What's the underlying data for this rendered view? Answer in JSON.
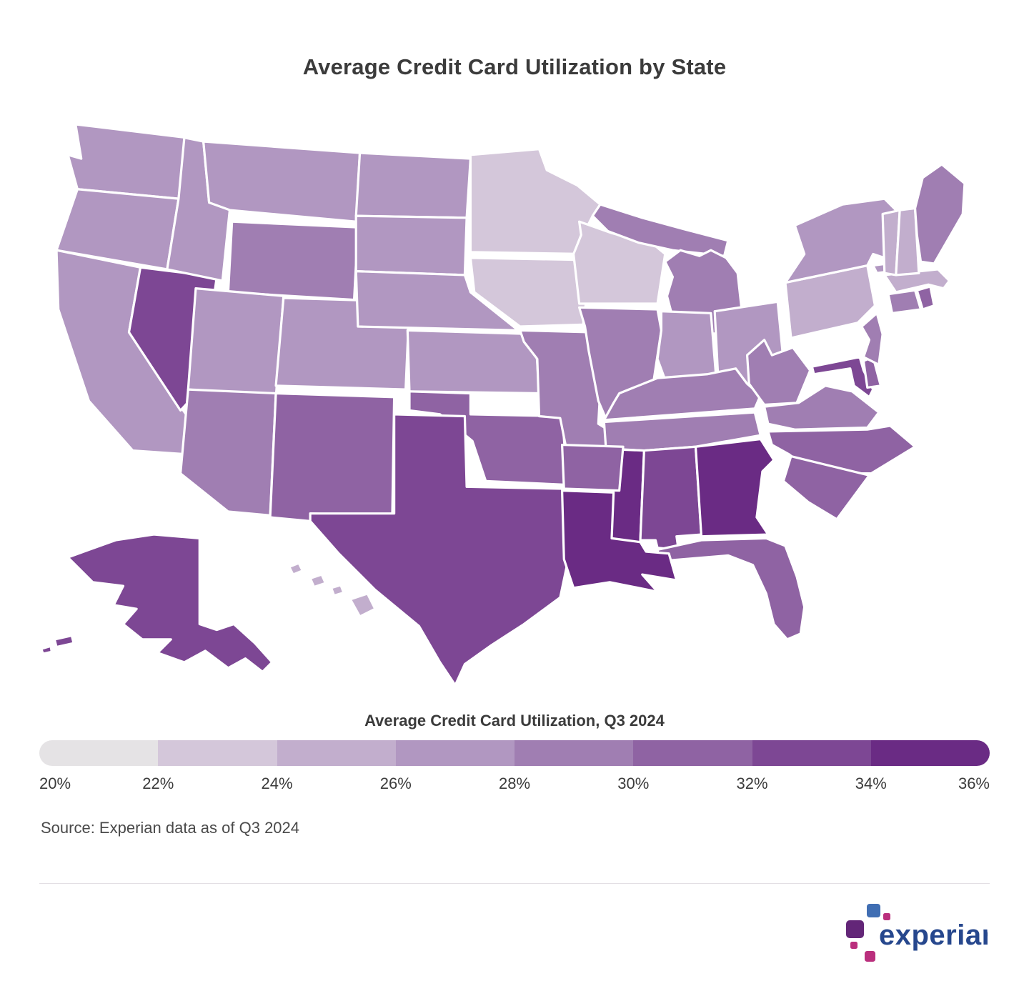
{
  "page": {
    "title": "Average Credit Card Utilization by State",
    "source_note": "Source: Experian data as of Q3 2024",
    "background_color": "#ffffff"
  },
  "brand": {
    "name": "experian",
    "trademark": "™",
    "wordmark_color": "#26478d",
    "square_colors": {
      "blue": "#406eb3",
      "purple": "#632678",
      "magenta": "#ba2f7d"
    }
  },
  "chart_data": {
    "type": "choropleth_map",
    "title": "Average Credit Card Utilization by State",
    "unit": "%",
    "region": "United States",
    "legend": {
      "title": "Average Credit Card Utilization, Q3 2024",
      "min": 20,
      "max": 36,
      "bucket_size": 2,
      "tick_labels": [
        "20%",
        "22%",
        "24%",
        "26%",
        "28%",
        "30%",
        "32%",
        "34%",
        "36%"
      ],
      "bucket_colors": [
        "#e5e3e5",
        "#d4c7da",
        "#c2aecd",
        "#b197c1",
        "#a07eb2",
        "#8f63a3",
        "#7d4794",
        "#6a2b84"
      ],
      "position": "bottom"
    },
    "map_border_color": "#ffffff",
    "states": [
      {
        "id": "WA",
        "name": "Washington",
        "value": 27.0
      },
      {
        "id": "OR",
        "name": "Oregon",
        "value": 26.9
      },
      {
        "id": "CA",
        "name": "California",
        "value": 27.6
      },
      {
        "id": "NV",
        "name": "Nevada",
        "value": 33.1
      },
      {
        "id": "ID",
        "name": "Idaho",
        "value": 26.4
      },
      {
        "id": "MT",
        "name": "Montana",
        "value": 26.6
      },
      {
        "id": "WY",
        "name": "Wyoming",
        "value": 28.1
      },
      {
        "id": "UT",
        "name": "Utah",
        "value": 26.2
      },
      {
        "id": "CO",
        "name": "Colorado",
        "value": 27.2
      },
      {
        "id": "AZ",
        "name": "Arizona",
        "value": 29.0
      },
      {
        "id": "NM",
        "name": "New Mexico",
        "value": 31.0
      },
      {
        "id": "ND",
        "name": "North Dakota",
        "value": 27.1
      },
      {
        "id": "SD",
        "name": "South Dakota",
        "value": 26.7
      },
      {
        "id": "NE",
        "name": "Nebraska",
        "value": 26.8
      },
      {
        "id": "KS",
        "name": "Kansas",
        "value": 27.4
      },
      {
        "id": "OK",
        "name": "Oklahoma",
        "value": 31.8
      },
      {
        "id": "TX",
        "name": "Texas",
        "value": 32.7
      },
      {
        "id": "MN",
        "name": "Minnesota",
        "value": 23.6
      },
      {
        "id": "IA",
        "name": "Iowa",
        "value": 23.9
      },
      {
        "id": "MO",
        "name": "Missouri",
        "value": 28.6
      },
      {
        "id": "WI",
        "name": "Wisconsin",
        "value": 23.4
      },
      {
        "id": "IL",
        "name": "Illinois",
        "value": 28.9
      },
      {
        "id": "MI",
        "name": "Michigan",
        "value": 29.3
      },
      {
        "id": "IN",
        "name": "Indiana",
        "value": 27.7
      },
      {
        "id": "OH",
        "name": "Ohio",
        "value": 27.5
      },
      {
        "id": "KY",
        "name": "Kentucky",
        "value": 29.5
      },
      {
        "id": "TN",
        "name": "Tennessee",
        "value": 29.2
      },
      {
        "id": "MS",
        "name": "Mississippi",
        "value": 35.2
      },
      {
        "id": "AL",
        "name": "Alabama",
        "value": 32.1
      },
      {
        "id": "GA",
        "name": "Georgia",
        "value": 34.8
      },
      {
        "id": "FL",
        "name": "Florida",
        "value": 31.0
      },
      {
        "id": "LA",
        "name": "Louisiana",
        "value": 34.4
      },
      {
        "id": "AR",
        "name": "Arkansas",
        "value": 31.6
      },
      {
        "id": "WV",
        "name": "West Virginia",
        "value": 29.6
      },
      {
        "id": "VA",
        "name": "Virginia",
        "value": 28.8
      },
      {
        "id": "NC",
        "name": "North Carolina",
        "value": 30.6
      },
      {
        "id": "SC",
        "name": "South Carolina",
        "value": 30.8
      },
      {
        "id": "MD",
        "name": "Maryland",
        "value": 32.4
      },
      {
        "id": "DE",
        "name": "Delaware",
        "value": 31.2
      },
      {
        "id": "NJ",
        "name": "New Jersey",
        "value": 28.9
      },
      {
        "id": "PA",
        "name": "Pennsylvania",
        "value": 25.8
      },
      {
        "id": "NY",
        "name": "New York",
        "value": 27.8
      },
      {
        "id": "CT",
        "name": "Connecticut",
        "value": 28.4
      },
      {
        "id": "RI",
        "name": "Rhode Island",
        "value": 30.3
      },
      {
        "id": "MA",
        "name": "Massachusetts",
        "value": 25.3
      },
      {
        "id": "VT",
        "name": "Vermont",
        "value": 24.6
      },
      {
        "id": "NH",
        "name": "New Hampshire",
        "value": 24.9
      },
      {
        "id": "ME",
        "name": "Maine",
        "value": 28.7
      },
      {
        "id": "AK",
        "name": "Alaska",
        "value": 32.9
      },
      {
        "id": "HI",
        "name": "Hawaii",
        "value": 25.4
      }
    ]
  }
}
